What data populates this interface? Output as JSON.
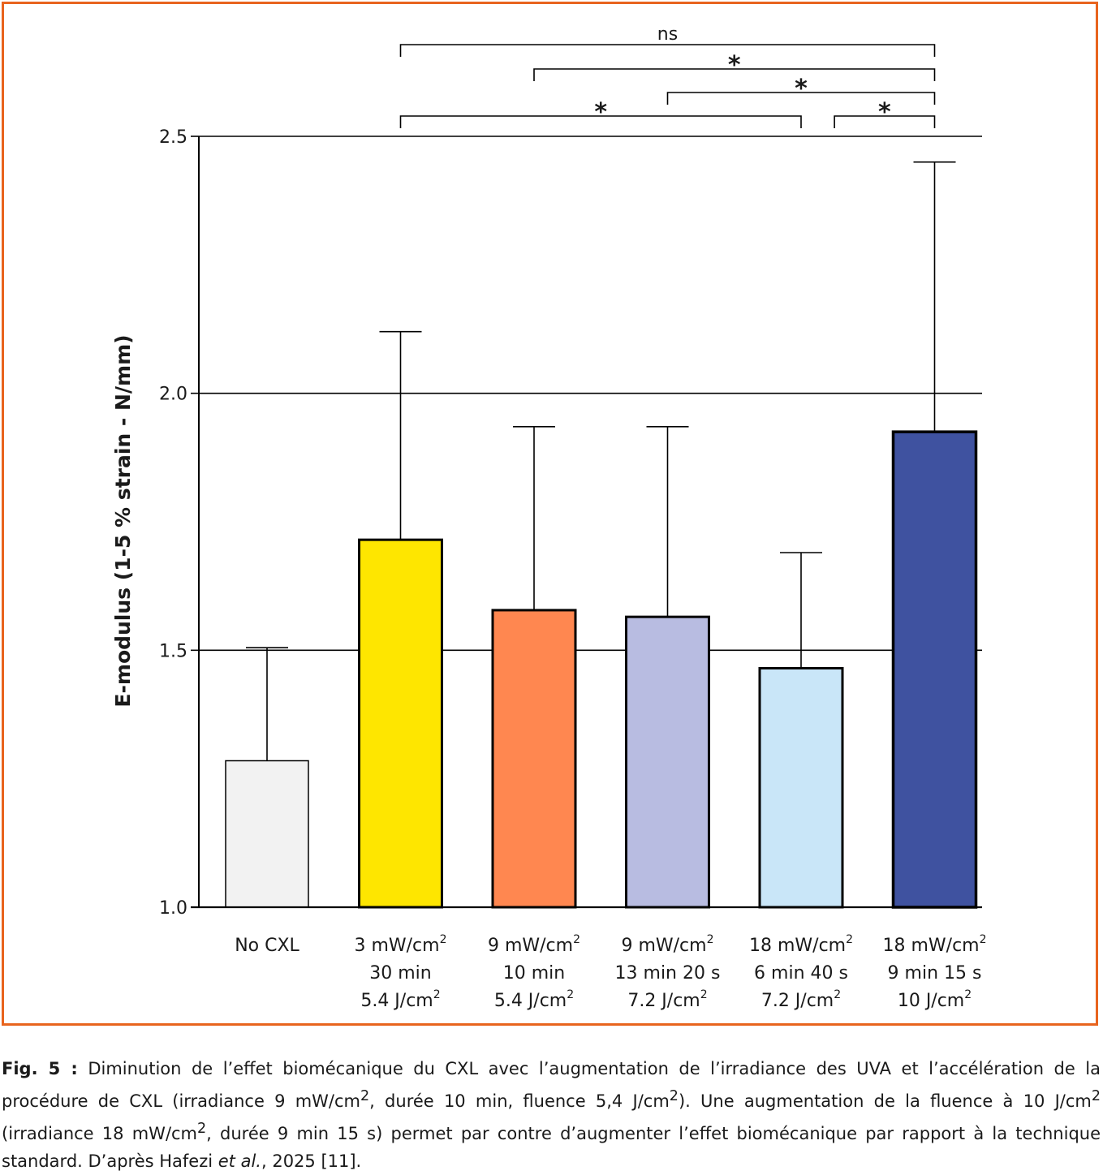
{
  "chart_data": {
    "type": "bar",
    "ylabel": "E-modulus (1-5 % strain - N/mm)",
    "ylim": [
      1.0,
      2.5
    ],
    "yticks": [
      "1.0",
      "1.5",
      "2.0",
      "2.5"
    ],
    "ytick_values": [
      1.0,
      1.5,
      2.0,
      2.5
    ],
    "grid": true,
    "categories": [
      {
        "lines": [
          "No CXL"
        ],
        "sup": [
          false
        ]
      },
      {
        "lines": [
          "3 mW/cm",
          "30 min",
          "5.4 J/cm"
        ],
        "sup": [
          true,
          false,
          true
        ]
      },
      {
        "lines": [
          "9 mW/cm",
          "10 min",
          "5.4 J/cm"
        ],
        "sup": [
          true,
          false,
          true
        ]
      },
      {
        "lines": [
          "9 mW/cm",
          "13 min 20 s",
          "7.2 J/cm"
        ],
        "sup": [
          true,
          false,
          true
        ]
      },
      {
        "lines": [
          "18 mW/cm",
          "6 min 40 s",
          "7.2 J/cm"
        ],
        "sup": [
          true,
          false,
          true
        ]
      },
      {
        "lines": [
          "18 mW/cm",
          "9 min 15 s",
          "10 J/cm"
        ],
        "sup": [
          true,
          false,
          true
        ]
      }
    ],
    "values": [
      1.285,
      1.715,
      1.578,
      1.565,
      1.465,
      1.925
    ],
    "error_upper": [
      1.505,
      2.12,
      1.935,
      1.935,
      1.69,
      2.45
    ],
    "colors": [
      "#f2f2f2",
      "#fee600",
      "#ff8750",
      "#b8bce1",
      "#c9e6f8",
      "#3f52a0"
    ],
    "edge_widths": [
      1.5,
      3,
      3,
      3,
      3,
      3.5
    ],
    "significance": [
      {
        "from": 1,
        "to": 5,
        "label": "ns"
      },
      {
        "from": 2,
        "to": 5,
        "label": "*"
      },
      {
        "from": 3,
        "to": 5,
        "label": "*"
      },
      {
        "from": 1,
        "to": 4,
        "label": "*"
      },
      {
        "from": 4.25,
        "to": 5,
        "label": "*"
      }
    ],
    "superscript": "2"
  },
  "caption": {
    "fig_label": "Fig. 5 :",
    "text_1": " Diminution de l’effet biomécanique du CXL avec l’augmentation de l’irradiance des UVA et l’accélération de la procédure de CXL (irradiance 9 mW/cm",
    "text_2": ", durée 10 min, fluence 5,4 J/cm",
    "text_3": "). Une augmentation de la fluence à 10 J/cm",
    "text_4": " (irradiance 18 mW/cm",
    "text_5": ", durée 9 min 15 s) permet par contre d’augmenter l’effet biomécanique par rapport à la technique standard. D’après Hafezi ",
    "text_italic": "et al.",
    "text_6": ", 2025 [11].",
    "sup": "2"
  }
}
